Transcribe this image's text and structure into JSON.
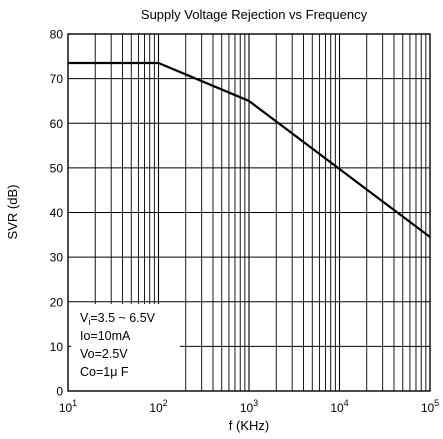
{
  "chart_data": {
    "type": "line",
    "title": "Supply Voltage Rejection vs Frequency",
    "xlabel": "f (KHz)",
    "ylabel": "SVR (dB)",
    "x_scale": "log",
    "xlim": [
      10,
      100000
    ],
    "ylim": [
      0,
      80
    ],
    "x_ticks": [
      {
        "value": 10,
        "base": "10",
        "exp": "1"
      },
      {
        "value": 100,
        "base": "10",
        "exp": "2"
      },
      {
        "value": 1000,
        "base": "10",
        "exp": "3"
      },
      {
        "value": 10000,
        "base": "10",
        "exp": "4"
      },
      {
        "value": 100000,
        "base": "10",
        "exp": "5"
      }
    ],
    "y_ticks": [
      0,
      10,
      20,
      30,
      40,
      50,
      60,
      70,
      80
    ],
    "grid": true,
    "series": [
      {
        "color": "#000000",
        "x": [
          10,
          100,
          1000,
          100000
        ],
        "y": [
          73.5,
          73.5,
          65,
          34.5
        ]
      }
    ],
    "annotation": {
      "lines": [
        {
          "main": "V",
          "sub": "i",
          "rest": "=3.5 ~ 6.5V"
        },
        {
          "main": "Io=10mA",
          "sub": "",
          "rest": ""
        },
        {
          "main": "Vo=2.5V",
          "sub": "",
          "rest": ""
        },
        {
          "main": "Co=1μ F",
          "sub": "",
          "rest": ""
        }
      ]
    }
  }
}
